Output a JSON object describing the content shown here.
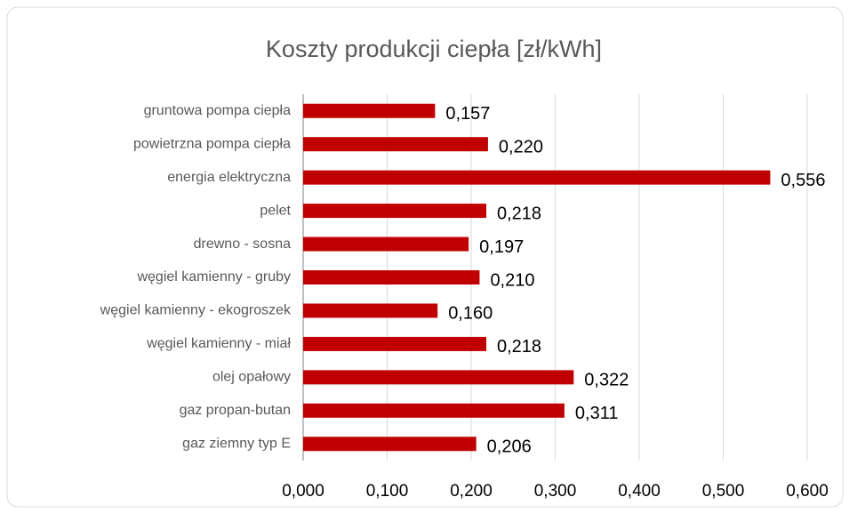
{
  "chart_data": {
    "type": "bar",
    "orientation": "horizontal",
    "title": "Koszty produkcji ciepła [zł/kWh]",
    "categories": [
      "gruntowa pompa ciepła",
      "powietrzna pompa ciepła",
      "energia elektryczna",
      "pelet",
      "drewno - sosna",
      "węgiel kamienny - gruby",
      "węgiel kamienny - ekogroszek",
      "węgiel kamienny - miał",
      "olej opałowy",
      "gaz propan-butan",
      "gaz ziemny typ E"
    ],
    "values": [
      0.157,
      0.22,
      0.556,
      0.218,
      0.197,
      0.21,
      0.16,
      0.218,
      0.322,
      0.311,
      0.206
    ],
    "value_labels": [
      "0,157",
      "0,220",
      "0,556",
      "0,218",
      "0,197",
      "0,210",
      "0,160",
      "0,218",
      "0,322",
      "0,311",
      "0,206"
    ],
    "color": "#c00000",
    "xlim": [
      0,
      0.6
    ],
    "xticks": [
      {
        "value": 0,
        "label": "0,000"
      },
      {
        "value": 0.1,
        "label": "0,100"
      },
      {
        "value": 0.2,
        "label": "0,200"
      },
      {
        "value": 0.3,
        "label": "0,300"
      },
      {
        "value": 0.4,
        "label": "0,400"
      },
      {
        "value": 0.5,
        "label": "0,500"
      },
      {
        "value": 0.6,
        "label": "0,600"
      }
    ],
    "grid": true
  }
}
